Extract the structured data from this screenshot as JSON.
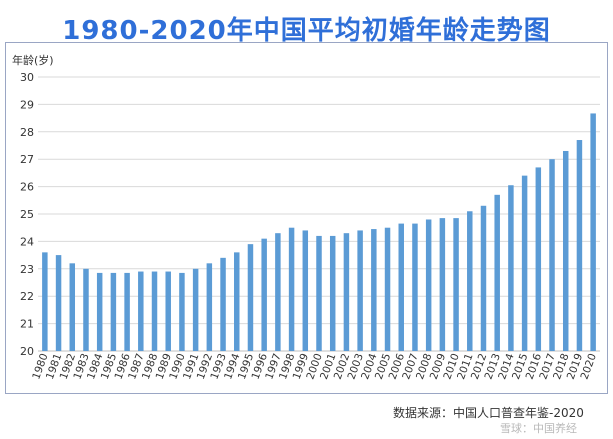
{
  "title": "1980-2020年中国平均初婚年龄走势图",
  "source": "数据来源：中国人口普查年鉴-2020",
  "watermark": "雪球：中国养经",
  "colors": {
    "bar": "#5b9bd5",
    "title": "#2f6fd8",
    "grid": "#d9d9d9",
    "axis": "#bfbfbf"
  },
  "chart_data": {
    "type": "bar",
    "title": "1980-2020年中国平均初婚年龄走势图",
    "xlabel": "",
    "ylabel": "年龄(岁)",
    "ylim": [
      20,
      30
    ],
    "yticks": [
      20,
      21,
      22,
      23,
      24,
      25,
      26,
      27,
      28,
      29,
      30
    ],
    "grid": true,
    "categories": [
      "1980",
      "1981",
      "1982",
      "1983",
      "1984",
      "1985",
      "1986",
      "1987",
      "1988",
      "1989",
      "1990",
      "1991",
      "1992",
      "1993",
      "1994",
      "1995",
      "1996",
      "1997",
      "1998",
      "1999",
      "2000",
      "2001",
      "2002",
      "2003",
      "2004",
      "2005",
      "2006",
      "2007",
      "2008",
      "2009",
      "2010",
      "2011",
      "2012",
      "2013",
      "2014",
      "2015",
      "2016",
      "2017",
      "2018",
      "2019",
      "2020"
    ],
    "values": [
      23.6,
      23.5,
      23.2,
      23.0,
      22.85,
      22.85,
      22.85,
      22.9,
      22.9,
      22.9,
      22.85,
      23.0,
      23.2,
      23.4,
      23.6,
      23.9,
      24.1,
      24.3,
      24.5,
      24.4,
      24.2,
      24.2,
      24.3,
      24.4,
      24.45,
      24.5,
      24.65,
      24.65,
      24.8,
      24.85,
      24.85,
      25.1,
      25.3,
      25.7,
      26.05,
      26.4,
      26.7,
      27.0,
      27.3,
      27.7,
      28.67
    ]
  }
}
